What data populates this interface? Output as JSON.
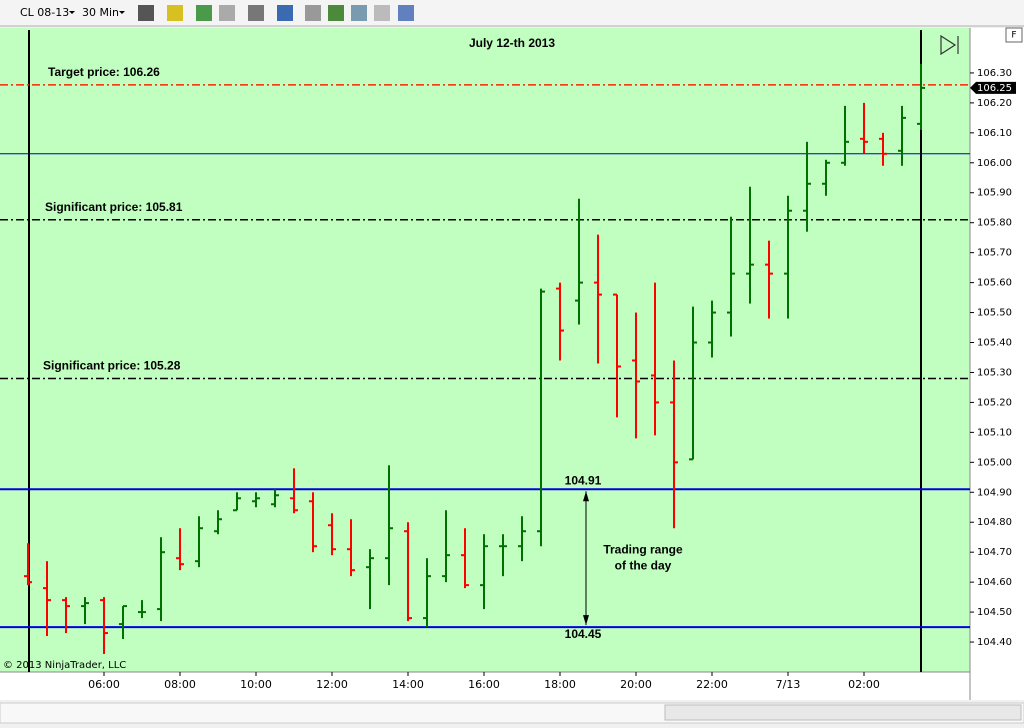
{
  "toolbar": {
    "instrument": "CL 08-13",
    "interval": "30 Min"
  },
  "chart_data": {
    "type": "ohlc",
    "title": "July 12-th 2013",
    "copyright": "© 2013 NinjaTrader, LLC",
    "corner_button": "F",
    "up_color": "#007000",
    "down_color": "#ff0000",
    "background": "#c0ffc0",
    "categories": [
      null,
      null,
      null,
      null,
      "06:00",
      null,
      null,
      null,
      "08:00",
      null,
      null,
      null,
      "10:00",
      null,
      null,
      null,
      "12:00",
      null,
      null,
      null,
      "14:00",
      null,
      null,
      null,
      "16:00",
      null,
      null,
      null,
      "18:00",
      null,
      null,
      null,
      "20:00",
      null,
      null,
      null,
      "22:00",
      null,
      null,
      null,
      "7/13",
      null,
      null,
      null,
      "02:00",
      null,
      null,
      null
    ],
    "open": [
      104.62,
      104.58,
      104.54,
      104.52,
      104.54,
      104.46,
      104.5,
      104.51,
      104.68,
      104.67,
      104.77,
      104.84,
      104.87,
      104.86,
      104.88,
      104.87,
      104.79,
      104.71,
      104.65,
      104.68,
      104.77,
      104.48,
      104.62,
      104.69,
      104.59,
      104.72,
      104.72,
      104.77,
      105.58,
      105.54,
      105.6,
      105.56,
      105.34,
      105.29,
      105.2,
      105.01,
      105.4,
      105.5,
      105.63,
      105.66,
      105.63,
      105.84,
      105.93,
      106.0,
      106.08,
      106.08,
      106.04,
      106.13
    ],
    "high": [
      104.73,
      104.67,
      104.55,
      104.55,
      104.55,
      104.52,
      104.54,
      104.75,
      104.78,
      104.82,
      104.84,
      104.9,
      104.9,
      104.91,
      104.98,
      104.9,
      104.83,
      104.81,
      104.71,
      104.99,
      104.8,
      104.68,
      104.84,
      104.78,
      104.76,
      104.76,
      104.82,
      105.58,
      105.6,
      105.88,
      105.76,
      105.56,
      105.5,
      105.6,
      105.34,
      105.52,
      105.54,
      105.82,
      105.92,
      105.74,
      105.89,
      106.07,
      106.01,
      106.19,
      106.2,
      106.1,
      106.19,
      106.33
    ],
    "low": [
      104.59,
      104.42,
      104.43,
      104.46,
      104.36,
      104.41,
      104.48,
      104.47,
      104.64,
      104.65,
      104.76,
      104.84,
      104.85,
      104.85,
      104.83,
      104.7,
      104.69,
      104.62,
      104.51,
      104.59,
      104.47,
      104.45,
      104.6,
      104.58,
      104.51,
      104.62,
      104.67,
      104.72,
      105.34,
      105.46,
      105.33,
      105.15,
      105.08,
      105.09,
      104.78,
      105.01,
      105.35,
      105.42,
      105.53,
      105.48,
      105.48,
      105.77,
      105.89,
      105.99,
      106.03,
      105.99,
      105.99,
      106.11
    ],
    "close": [
      104.6,
      104.54,
      104.52,
      104.53,
      104.43,
      104.52,
      104.5,
      104.7,
      104.66,
      104.78,
      104.81,
      104.88,
      104.88,
      104.89,
      104.84,
      104.72,
      104.71,
      104.64,
      104.68,
      104.78,
      104.48,
      104.62,
      104.69,
      104.59,
      104.72,
      104.72,
      104.77,
      105.57,
      105.44,
      105.6,
      105.56,
      105.32,
      105.27,
      105.2,
      105.0,
      105.4,
      105.5,
      105.63,
      105.66,
      105.63,
      105.84,
      105.93,
      106.0,
      106.07,
      106.07,
      106.03,
      106.15,
      106.25
    ],
    "ylim": [
      104.3,
      106.45
    ],
    "yticks": [
      {
        "value": 104.4,
        "label": "104.40"
      },
      {
        "value": 104.5,
        "label": "104.50"
      },
      {
        "value": 104.6,
        "label": "104.60"
      },
      {
        "value": 104.7,
        "label": "104.70"
      },
      {
        "value": 104.8,
        "label": "104.80"
      },
      {
        "value": 104.9,
        "label": "104.90"
      },
      {
        "value": 105,
        "label": "105.00"
      },
      {
        "value": 105.1,
        "label": "105.10"
      },
      {
        "value": 105.2,
        "label": "105.20"
      },
      {
        "value": 105.3,
        "label": "105.30"
      },
      {
        "value": 105.4,
        "label": "105.40"
      },
      {
        "value": 105.5,
        "label": "105.50"
      },
      {
        "value": 105.6,
        "label": "105.60"
      },
      {
        "value": 105.7,
        "label": "105.70"
      },
      {
        "value": 105.8,
        "label": "105.80"
      },
      {
        "value": 105.9,
        "label": "105.90"
      },
      {
        "value": 106,
        "label": "106.00"
      },
      {
        "value": 106.1,
        "label": "106.10"
      },
      {
        "value": 106.2,
        "label": "106.20"
      },
      {
        "value": 106.3,
        "label": "106.30"
      }
    ],
    "last_price": {
      "value": 106.25,
      "label": "106.25"
    },
    "lines": [
      {
        "value": 106.26,
        "label": "Target price: 106.26",
        "color": "#ff2000",
        "style": "dashdot",
        "width": 1.5
      },
      {
        "value": 106.03,
        "color": "#0000c0",
        "style": "solid",
        "width": 1
      },
      {
        "value": 105.81,
        "label": "Significant price: 105.81",
        "color": "#000000",
        "style": "dashdot",
        "width": 1.5
      },
      {
        "value": 105.28,
        "label": "Significant price: 105.28",
        "color": "#000000",
        "style": "dashdot",
        "width": 1.5
      },
      {
        "value": 104.91,
        "label": "104.91",
        "color": "#0000dd",
        "style": "solid",
        "width": 2
      },
      {
        "value": 104.45,
        "label": "104.45",
        "color": "#0000dd",
        "style": "solid",
        "width": 2
      }
    ],
    "range_note": [
      "Trading range",
      "of the day"
    ]
  }
}
